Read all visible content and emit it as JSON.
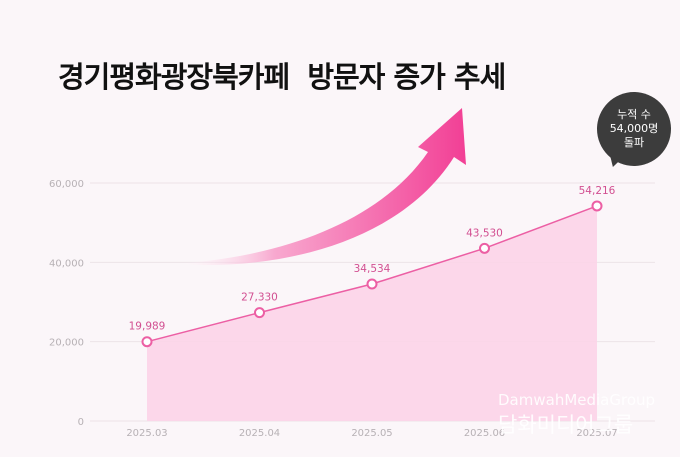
{
  "title": "경기평화광장북카페  방문자 증가 추세",
  "badge": {
    "line1": "누적 수",
    "line2": "54,000명",
    "line3": "돌파"
  },
  "watermark": {
    "en": "DamwahMediaGroup",
    "ko": "담화미디어그룹"
  },
  "colors": {
    "line": "#ec5fa4",
    "area": "#fcd4e8",
    "marker_fill": "#ffffff",
    "grid": "#ece3e8",
    "arrow": "#f23f95"
  },
  "chart_data": {
    "type": "area",
    "title": "경기평화광장북카페  방문자 증가 추세",
    "xlabel": "",
    "ylabel": "",
    "categories": [
      "2025.03",
      "2025.04",
      "2025.05",
      "2025.06",
      "2025.07"
    ],
    "values": [
      19989,
      27330,
      34534,
      43530,
      54216
    ],
    "data_labels": [
      "19,989",
      "27,330",
      "34,534",
      "43,530",
      "54,216"
    ],
    "y_ticks": [
      0,
      20000,
      40000,
      60000
    ],
    "y_tick_labels": [
      "0",
      "20,000",
      "40,000",
      "60,000"
    ],
    "ylim": [
      0,
      60000
    ],
    "grid": true,
    "legend": "none"
  }
}
